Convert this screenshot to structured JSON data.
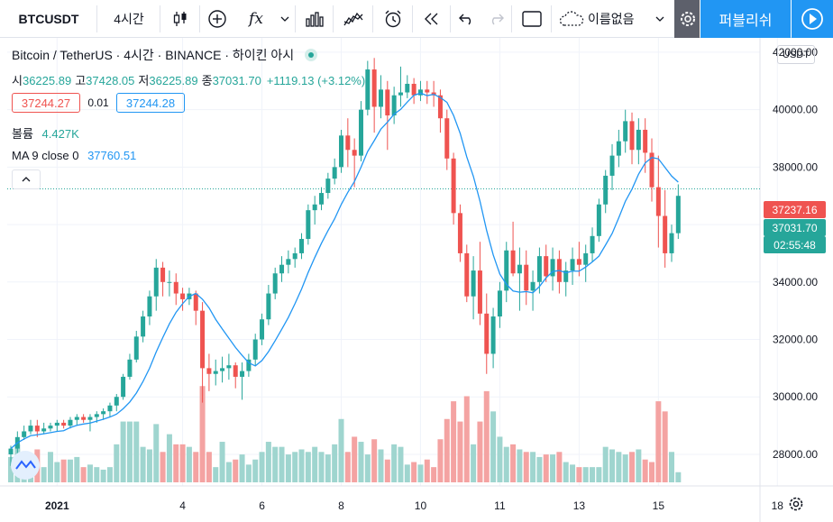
{
  "toolbar": {
    "symbol": "BTCUSDT",
    "interval": "4시간",
    "fx_label": "fx",
    "layout_name": "이름없음",
    "publish": "퍼블리쉬",
    "icons": [
      "candle-style-icon",
      "add-indicator-icon",
      "fx-icon",
      "chevron-down-icon",
      "bar-chart-icon",
      "compare-icon",
      "alert-icon",
      "replay-icon",
      "undo-icon",
      "redo-icon",
      "fullscreen-icon",
      "cloud-icon",
      "gear-icon",
      "play-icon"
    ]
  },
  "legend": {
    "title": "Bitcoin / TetherUS · 4시간 · BINANCE · 하이킨 아시",
    "ohlc": [
      {
        "k": "시",
        "v": "36225.89"
      },
      {
        "k": "고",
        "v": "37428.05"
      },
      {
        "k": "저",
        "v": "36225.89"
      },
      {
        "k": "종",
        "v": "37031.70"
      }
    ],
    "change": "+1119.13 (+3.12%)",
    "bid": "37244.27",
    "spread": "0.01",
    "ask": "37244.28",
    "volume_label": "볼륨",
    "volume_value": "4.427K",
    "ma_label": "MA 9 close 0",
    "ma_value": "37760.51"
  },
  "price_axis": {
    "currency": "USDT",
    "crosshair_price": "37237.16",
    "last_price": "37031.70",
    "countdown": "02:55:48"
  },
  "colors": {
    "up": "#26a69a",
    "down": "#ef5350",
    "up_vol": "#9fd5cf",
    "down_vol": "#f4a3a2",
    "ma": "#2196f3",
    "accent": "#2196f3"
  },
  "chart_data": {
    "type": "candlestick",
    "y_ticks": [
      28000,
      30000,
      32000,
      34000,
      36000,
      38000,
      40000,
      42000
    ],
    "ylim": [
      26900,
      42500
    ],
    "x_ticks": [
      {
        "label": "2021",
        "i": 7
      },
      {
        "label": "4",
        "i": 26
      },
      {
        "label": "6",
        "i": 38
      },
      {
        "label": "8",
        "i": 50
      },
      {
        "label": "10",
        "i": 62
      },
      {
        "label": "11",
        "i": 74
      },
      {
        "label": "13",
        "i": 86
      },
      {
        "label": "15",
        "i": 98
      },
      {
        "label": "18",
        "i": 116
      }
    ],
    "candles": [
      [
        28000,
        28300,
        27600,
        28200,
        1.0
      ],
      [
        28200,
        28800,
        28000,
        28600,
        1.5
      ],
      [
        28600,
        29000,
        28500,
        28800,
        0.5
      ],
      [
        28800,
        29200,
        28700,
        29000,
        1.0
      ],
      [
        29000,
        29200,
        28600,
        28800,
        1.3
      ],
      [
        28800,
        29100,
        28700,
        28900,
        0.6
      ],
      [
        28900,
        29100,
        28800,
        29000,
        1.2
      ],
      [
        29000,
        29200,
        28800,
        29100,
        0.8
      ],
      [
        29100,
        29200,
        28900,
        29000,
        0.9
      ],
      [
        29000,
        29300,
        28900,
        29200,
        0.9
      ],
      [
        29200,
        29400,
        29000,
        29300,
        1.0
      ],
      [
        29300,
        29400,
        29100,
        29200,
        0.6
      ],
      [
        29200,
        29400,
        28800,
        29300,
        0.7
      ],
      [
        29300,
        29500,
        29100,
        29400,
        0.6
      ],
      [
        29400,
        29600,
        29200,
        29500,
        0.5
      ],
      [
        29500,
        29800,
        29300,
        29700,
        0.6
      ],
      [
        29700,
        30100,
        29500,
        30000,
        1.5
      ],
      [
        30000,
        30800,
        29900,
        30700,
        2.4
      ],
      [
        30700,
        31500,
        30600,
        31300,
        2.4
      ],
      [
        31300,
        32300,
        31200,
        32100,
        2.4
      ],
      [
        32100,
        33000,
        31900,
        32800,
        1.4
      ],
      [
        32800,
        33700,
        32500,
        33500,
        1.3
      ],
      [
        33500,
        34800,
        33000,
        34500,
        2.3
      ],
      [
        34500,
        34700,
        33500,
        34000,
        1.2
      ],
      [
        34000,
        34400,
        33500,
        34000,
        1.9
      ],
      [
        34000,
        34300,
        33200,
        33600,
        1.5
      ],
      [
        33600,
        33800,
        33000,
        33400,
        1.5
      ],
      [
        33400,
        33800,
        33200,
        33600,
        1.4
      ],
      [
        33600,
        33700,
        32500,
        33000,
        1.2
      ],
      [
        33000,
        33300,
        29800,
        31000,
        3.8
      ],
      [
        31000,
        31500,
        30200,
        30800,
        1.2
      ],
      [
        30800,
        31300,
        30400,
        30900,
        0.6
      ],
      [
        30900,
        31400,
        30500,
        31000,
        1.6
      ],
      [
        31000,
        31500,
        30600,
        31100,
        0.8
      ],
      [
        31100,
        31200,
        30300,
        30700,
        0.9
      ],
      [
        30700,
        31200,
        29900,
        30900,
        1.1
      ],
      [
        30900,
        31500,
        30700,
        31300,
        0.7
      ],
      [
        31300,
        32200,
        31100,
        32000,
        0.9
      ],
      [
        32000,
        32900,
        31800,
        32700,
        1.2
      ],
      [
        32700,
        33900,
        32500,
        33600,
        1.6
      ],
      [
        33600,
        34500,
        33400,
        34300,
        1.4
      ],
      [
        34300,
        34900,
        34000,
        34600,
        1.4
      ],
      [
        34600,
        35100,
        34300,
        34800,
        1.1
      ],
      [
        34800,
        35200,
        34500,
        35000,
        1.2
      ],
      [
        35000,
        35700,
        34800,
        35500,
        1.3
      ],
      [
        35500,
        36700,
        35300,
        36500,
        1.2
      ],
      [
        36500,
        37000,
        36000,
        36700,
        1.4
      ],
      [
        36700,
        37300,
        36500,
        37100,
        1.2
      ],
      [
        37100,
        37800,
        36900,
        37600,
        1.1
      ],
      [
        37600,
        38300,
        37400,
        38000,
        1.5
      ],
      [
        38000,
        39300,
        37800,
        39100,
        2.5
      ],
      [
        39100,
        39700,
        38000,
        38600,
        1.2
      ],
      [
        38600,
        39000,
        37300,
        38400,
        1.8
      ],
      [
        38400,
        40300,
        38200,
        40000,
        1.6
      ],
      [
        40000,
        41700,
        39800,
        41400,
        1.1
      ],
      [
        41400,
        41800,
        39200,
        40100,
        1.7
      ],
      [
        40100,
        41200,
        39700,
        40700,
        1.3
      ],
      [
        40700,
        41000,
        38600,
        39800,
        0.9
      ],
      [
        39800,
        40800,
        39500,
        40500,
        1.5
      ],
      [
        40500,
        41500,
        40100,
        40600,
        1.4
      ],
      [
        40600,
        41200,
        40400,
        40900,
        0.7
      ],
      [
        40900,
        41100,
        40200,
        40500,
        0.8
      ],
      [
        40500,
        41000,
        40300,
        40700,
        0.7
      ],
      [
        40700,
        41000,
        40200,
        40600,
        0.9
      ],
      [
        40600,
        41000,
        40100,
        40500,
        0.6
      ],
      [
        40500,
        40700,
        39200,
        39700,
        1.7
      ],
      [
        39700,
        40000,
        37900,
        38300,
        2.5
      ],
      [
        38300,
        38500,
        36000,
        36400,
        3.2
      ],
      [
        36400,
        36700,
        34700,
        35000,
        2.4
      ],
      [
        35000,
        35300,
        33300,
        33500,
        3.4
      ],
      [
        33500,
        34900,
        32700,
        34400,
        1.5
      ],
      [
        34400,
        35400,
        32500,
        32900,
        2.4
      ],
      [
        32900,
        33600,
        30800,
        31500,
        3.6
      ],
      [
        31500,
        33100,
        31000,
        32800,
        2.8
      ],
      [
        32800,
        34000,
        32400,
        33700,
        1.8
      ],
      [
        33700,
        35400,
        33300,
        35100,
        1.4
      ],
      [
        35100,
        36100,
        34200,
        34300,
        1.5
      ],
      [
        34300,
        35200,
        33000,
        34600,
        1.3
      ],
      [
        34600,
        35100,
        33200,
        33700,
        1.2
      ],
      [
        33700,
        34400,
        33000,
        34000,
        1.2
      ],
      [
        34000,
        35200,
        33600,
        34900,
        1.0
      ],
      [
        34900,
        35300,
        34000,
        34200,
        1.1
      ],
      [
        34200,
        35200,
        33700,
        34800,
        1.1
      ],
      [
        34800,
        35100,
        33600,
        34000,
        1.2
      ],
      [
        34000,
        34700,
        33500,
        34400,
        0.8
      ],
      [
        34400,
        35200,
        33900,
        34800,
        0.7
      ],
      [
        34800,
        35400,
        34200,
        34600,
        0.6
      ],
      [
        34600,
        35300,
        34000,
        35000,
        0.6
      ],
      [
        35000,
        35900,
        34700,
        35600,
        0.6
      ],
      [
        35600,
        36900,
        35400,
        36700,
        0.6
      ],
      [
        36700,
        37900,
        36400,
        37700,
        1.4
      ],
      [
        37700,
        38800,
        37200,
        38400,
        1.3
      ],
      [
        38400,
        39300,
        38000,
        38900,
        1.2
      ],
      [
        38900,
        40000,
        38500,
        39600,
        1.1
      ],
      [
        39600,
        39900,
        38100,
        38600,
        1.2
      ],
      [
        38600,
        39700,
        38100,
        39300,
        1.3
      ],
      [
        39300,
        39700,
        37800,
        38500,
        0.9
      ],
      [
        38500,
        39000,
        36800,
        37300,
        0.8
      ],
      [
        37300,
        38400,
        35200,
        36300,
        3.2
      ],
      [
        36300,
        37200,
        34500,
        35000,
        2.8
      ],
      [
        35000,
        36000,
        34700,
        35700,
        1.2
      ],
      [
        35700,
        37400,
        35500,
        37000,
        0.4
      ]
    ]
  }
}
